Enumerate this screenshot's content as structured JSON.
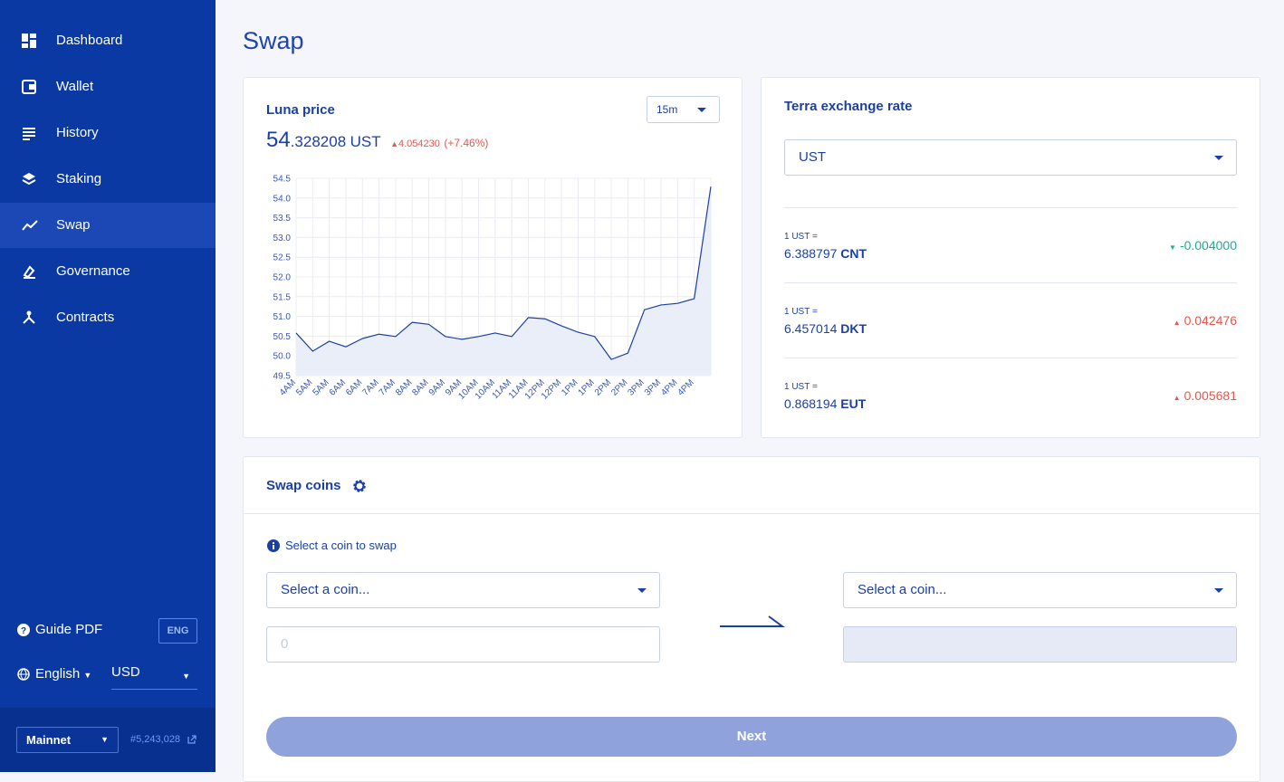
{
  "sidebar": {
    "nav": [
      "Dashboard",
      "Wallet",
      "History",
      "Staking",
      "Swap",
      "Governance",
      "Contracts"
    ],
    "active": 4,
    "guide": "Guide PDF",
    "guide_lang": "ENG",
    "language": "English",
    "currency": "USD",
    "network": "Mainnet",
    "block": "#5,243,028"
  },
  "page_title": "Swap",
  "luna_card": {
    "title": "Luna price",
    "interval": "15m",
    "price_whole": "54",
    "price_fraction": ".328208",
    "unit": "UST",
    "change": "4.054230",
    "change_percent": "(+7.46%)"
  },
  "chart_data": {
    "type": "line",
    "color": "#1a3fa6",
    "area_color": "#eaeef8",
    "grid": true,
    "categories": [
      "4AM",
      "5AM",
      "5AM",
      "6AM",
      "6AM",
      "7AM",
      "7AM",
      "8AM",
      "8AM",
      "9AM",
      "9AM",
      "10AM",
      "10AM",
      "11AM",
      "11AM",
      "12PM",
      "12PM",
      "1PM",
      "1PM",
      "2PM",
      "2PM",
      "3PM",
      "3PM",
      "4PM",
      "4PM",
      null
    ],
    "values": [
      50.58,
      50.12,
      50.37,
      50.23,
      50.44,
      50.55,
      50.49,
      50.85,
      50.8,
      50.49,
      50.42,
      50.49,
      50.58,
      50.49,
      50.97,
      50.94,
      50.76,
      50.6,
      50.49,
      49.91,
      50.07,
      51.17,
      51.29,
      51.33,
      51.45,
      54.29
    ],
    "ylim": [
      49.5,
      54.5
    ],
    "yticks": [
      49.5,
      {
        "value": 50,
        "label": "50.0"
      },
      50.5,
      {
        "value": 51,
        "label": "51.0"
      },
      51.5,
      {
        "value": 52,
        "label": "52.0"
      },
      52.5,
      {
        "value": 53,
        "label": "53.0"
      },
      53.5,
      {
        "value": 54,
        "label": "54.0"
      },
      54.5
    ]
  },
  "terra_card": {
    "title": "Terra exchange rate",
    "currency": "UST",
    "rates": [
      {
        "label": "1 UST =",
        "value": "6.388797",
        "denom": "CNT",
        "change": "-0.004000",
        "direction": "down"
      },
      {
        "label": "1 UST =",
        "value": "6.457014",
        "denom": "DKT",
        "change": "0.042476",
        "direction": "up"
      },
      {
        "label": "1 UST =",
        "value": "0.868194",
        "denom": "EUT",
        "change": "0.005681",
        "direction": "up"
      }
    ]
  },
  "swap_card": {
    "title": "Swap coins",
    "hint": "Select a coin to swap",
    "from_placeholder": "Select a coin...",
    "amount_placeholder": "0",
    "to_placeholder": "Select a coin...",
    "button": "Next"
  }
}
